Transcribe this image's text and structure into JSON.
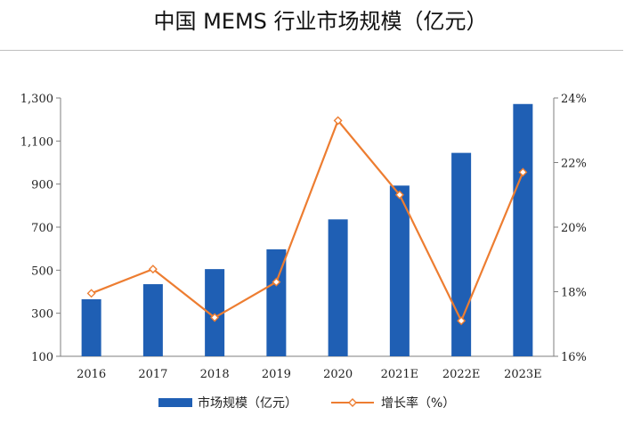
{
  "title": "中国 MEMS 行业市场规模（亿元）",
  "chart_data": {
    "type": "bar",
    "categories": [
      "2016",
      "2017",
      "2018",
      "2019",
      "2020",
      "2021E",
      "2022E",
      "2023E"
    ],
    "series": [
      {
        "name": "市场规模（亿元）",
        "type": "bar",
        "axis": "left",
        "color": "#1f5fb4",
        "values": [
          365,
          435,
          505,
          597,
          736,
          893,
          1045,
          1272
        ]
      },
      {
        "name": "增长率（%）",
        "type": "line",
        "axis": "right",
        "color": "#ed7d31",
        "values": [
          17.95,
          18.7,
          17.2,
          18.3,
          23.3,
          21.0,
          17.1,
          21.7
        ]
      }
    ],
    "left_axis": {
      "min": 100,
      "max": 1300,
      "ticks": [
        "100",
        "300",
        "500",
        "700",
        "900",
        "1,100",
        "1,300"
      ]
    },
    "right_axis": {
      "min": 16,
      "max": 24,
      "ticks": [
        "16%",
        "18%",
        "20%",
        "22%",
        "24%"
      ]
    },
    "legend": "bottom"
  }
}
